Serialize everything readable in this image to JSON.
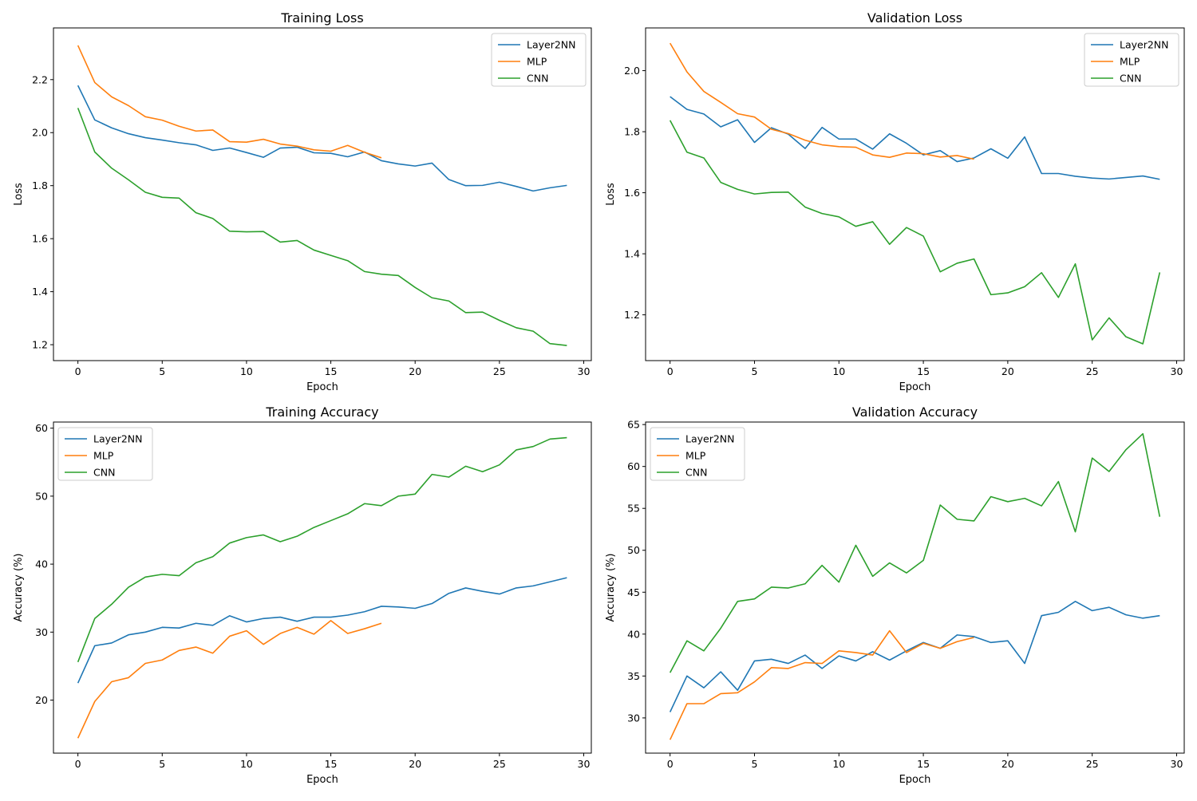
{
  "colors": {
    "Layer2NN": "#1f77b4",
    "MLP": "#ff7f0e",
    "CNN": "#2ca02c"
  },
  "chart_data": [
    {
      "type": "line",
      "title": "Training Loss",
      "xlabel": "Epoch",
      "ylabel": "Loss",
      "xlim": [
        -1.45,
        30.45
      ],
      "ylim": [
        1.14,
        2.395
      ],
      "xticks": [
        0,
        5,
        10,
        15,
        20,
        25,
        30
      ],
      "yticks": [
        1.2,
        1.4,
        1.6,
        1.8,
        2.0,
        2.2
      ],
      "ytick_labels": [
        "1.2",
        "1.4",
        "1.6",
        "1.8",
        "2.0",
        "2.2"
      ],
      "legend": "top-right",
      "series": [
        {
          "name": "Layer2NN",
          "values": [
            2.178,
            2.048,
            2.018,
            1.996,
            1.981,
            1.972,
            1.962,
            1.954,
            1.933,
            1.942,
            1.925,
            1.907,
            1.942,
            1.945,
            1.924,
            1.922,
            1.909,
            1.927,
            1.894,
            1.882,
            1.874,
            1.885,
            1.823,
            1.8,
            1.801,
            1.813,
            1.797,
            1.78,
            1.792,
            1.801
          ]
        },
        {
          "name": "MLP",
          "values": [
            2.329,
            2.189,
            2.135,
            2.102,
            2.06,
            2.047,
            2.024,
            2.006,
            2.01,
            1.966,
            1.964,
            1.975,
            1.957,
            1.949,
            1.935,
            1.93,
            1.952,
            1.926,
            1.905
          ]
        },
        {
          "name": "CNN",
          "values": [
            2.093,
            1.927,
            1.866,
            1.822,
            1.775,
            1.756,
            1.753,
            1.698,
            1.676,
            1.628,
            1.626,
            1.627,
            1.587,
            1.593,
            1.557,
            1.537,
            1.517,
            1.476,
            1.466,
            1.461,
            1.416,
            1.377,
            1.365,
            1.321,
            1.323,
            1.292,
            1.264,
            1.251,
            1.204,
            1.197
          ]
        }
      ]
    },
    {
      "type": "line",
      "title": "Validation Loss",
      "xlabel": "Epoch",
      "ylabel": "Loss",
      "xlim": [
        -1.45,
        30.45
      ],
      "ylim": [
        1.05,
        2.14
      ],
      "xticks": [
        0,
        5,
        10,
        15,
        20,
        25,
        30
      ],
      "yticks": [
        1.2,
        1.4,
        1.6,
        1.8,
        2.0
      ],
      "ytick_labels": [
        "1.2",
        "1.4",
        "1.6",
        "1.8",
        "2.0"
      ],
      "legend": "top-right",
      "series": [
        {
          "name": "Layer2NN",
          "values": [
            1.915,
            1.873,
            1.858,
            1.816,
            1.839,
            1.765,
            1.813,
            1.792,
            1.745,
            1.814,
            1.776,
            1.776,
            1.743,
            1.793,
            1.762,
            1.724,
            1.738,
            1.702,
            1.714,
            1.744,
            1.713,
            1.783,
            1.663,
            1.663,
            1.654,
            1.648,
            1.645,
            1.65,
            1.655,
            1.644
          ]
        },
        {
          "name": "MLP",
          "values": [
            2.09,
            1.996,
            1.932,
            1.896,
            1.859,
            1.848,
            1.808,
            1.794,
            1.772,
            1.757,
            1.751,
            1.749,
            1.724,
            1.716,
            1.73,
            1.728,
            1.717,
            1.722,
            1.71
          ]
        },
        {
          "name": "CNN",
          "values": [
            1.837,
            1.733,
            1.714,
            1.634,
            1.611,
            1.596,
            1.601,
            1.602,
            1.553,
            1.532,
            1.521,
            1.49,
            1.505,
            1.431,
            1.486,
            1.458,
            1.341,
            1.369,
            1.383,
            1.266,
            1.272,
            1.292,
            1.338,
            1.257,
            1.367,
            1.118,
            1.19,
            1.128,
            1.105,
            1.339
          ]
        }
      ]
    },
    {
      "type": "line",
      "title": "Training Accuracy",
      "xlabel": "Epoch",
      "ylabel": "Accuracy (%)",
      "xlim": [
        -1.45,
        30.45
      ],
      "ylim": [
        12.2,
        60.9
      ],
      "xticks": [
        0,
        5,
        10,
        15,
        20,
        25,
        30
      ],
      "yticks": [
        20,
        30,
        40,
        50,
        60
      ],
      "ytick_labels": [
        "20",
        "30",
        "40",
        "50",
        "60"
      ],
      "legend": "top-left",
      "series": [
        {
          "name": "Layer2NN",
          "values": [
            22.5,
            28.0,
            28.4,
            29.6,
            30.0,
            30.7,
            30.6,
            31.3,
            31.0,
            32.4,
            31.5,
            32.0,
            32.2,
            31.6,
            32.2,
            32.2,
            32.5,
            33.0,
            33.8,
            33.7,
            33.5,
            34.2,
            35.7,
            36.5,
            36.0,
            35.6,
            36.5,
            36.8,
            37.4,
            38.0
          ]
        },
        {
          "name": "MLP",
          "values": [
            14.4,
            19.8,
            22.7,
            23.3,
            25.4,
            25.9,
            27.3,
            27.8,
            26.9,
            29.4,
            30.2,
            28.2,
            29.8,
            30.7,
            29.7,
            31.7,
            29.8,
            30.5,
            31.3
          ]
        },
        {
          "name": "CNN",
          "values": [
            25.6,
            32.0,
            34.1,
            36.6,
            38.1,
            38.5,
            38.3,
            40.2,
            41.1,
            43.1,
            43.9,
            44.3,
            43.3,
            44.1,
            45.4,
            46.4,
            47.4,
            48.9,
            48.6,
            50.0,
            50.3,
            53.2,
            52.8,
            54.4,
            53.6,
            54.6,
            56.8,
            57.3,
            58.4,
            58.6
          ]
        }
      ]
    },
    {
      "type": "line",
      "title": "Validation Accuracy",
      "xlabel": "Epoch",
      "ylabel": "Accuracy (%)",
      "xlim": [
        -1.45,
        30.45
      ],
      "ylim": [
        25.8,
        65.3
      ],
      "xticks": [
        0,
        5,
        10,
        15,
        20,
        25,
        30
      ],
      "yticks": [
        30,
        35,
        40,
        45,
        50,
        55,
        60,
        65
      ],
      "ytick_labels": [
        "30",
        "35",
        "40",
        "45",
        "50",
        "55",
        "60",
        "65"
      ],
      "legend": "top-left",
      "series": [
        {
          "name": "Layer2NN",
          "values": [
            30.7,
            35.0,
            33.6,
            35.5,
            33.3,
            36.8,
            37.0,
            36.5,
            37.5,
            35.9,
            37.4,
            36.8,
            37.9,
            36.9,
            38.0,
            39.0,
            38.3,
            39.9,
            39.7,
            39.0,
            39.2,
            36.5,
            42.2,
            42.6,
            43.9,
            42.8,
            43.2,
            42.3,
            41.9,
            42.2
          ]
        },
        {
          "name": "MLP",
          "values": [
            27.4,
            31.7,
            31.7,
            32.9,
            33.0,
            34.3,
            36.0,
            35.9,
            36.6,
            36.5,
            38.0,
            37.8,
            37.5,
            40.4,
            37.8,
            38.9,
            38.3,
            39.1,
            39.6
          ]
        },
        {
          "name": "CNN",
          "values": [
            35.4,
            39.2,
            38.0,
            40.7,
            43.9,
            44.2,
            45.6,
            45.5,
            46.0,
            48.2,
            46.2,
            50.6,
            46.9,
            48.5,
            47.3,
            48.8,
            55.4,
            53.7,
            53.5,
            56.4,
            55.8,
            56.2,
            55.3,
            58.2,
            52.2,
            61.0,
            59.4,
            62.0,
            63.9,
            54.0
          ]
        }
      ]
    }
  ]
}
